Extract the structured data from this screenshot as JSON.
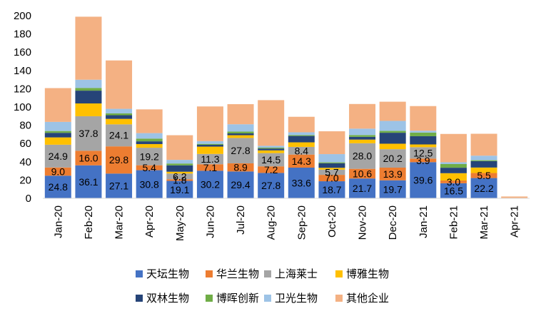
{
  "chart_data": {
    "type": "bar",
    "stacked": true,
    "categories": [
      "Jan-20",
      "Feb-20",
      "Mar-20",
      "Apr-20",
      "May-20",
      "Jun-20",
      "Jul-20",
      "Aug-20",
      "Sep-20",
      "Oct-20",
      "Nov-20",
      "Dec-20",
      "Jan-21",
      "Feb-21",
      "Mar-21",
      "Apr-21"
    ],
    "ylim": [
      0,
      200
    ],
    "yticks": [
      0,
      20,
      40,
      60,
      80,
      100,
      120,
      140,
      160,
      180,
      200
    ],
    "grid": false,
    "legend_position": "bottom",
    "series": [
      {
        "name": "天坛生物",
        "color": "#4472C4",
        "values": [
          24.8,
          36.1,
          27.1,
          30.8,
          19.1,
          30.2,
          29.4,
          27.8,
          33.6,
          18.7,
          21.7,
          19.7,
          39.6,
          16.5,
          22.2,
          0
        ],
        "labels": [
          "24.8",
          "36.1",
          "27.1",
          "30.8",
          "19.1",
          "30.2",
          "29.4",
          "27.8",
          "33.6",
          "18.7",
          "21.7",
          "19.7",
          "39.6",
          "16.5",
          "22.2",
          ""
        ]
      },
      {
        "name": "华兰生物",
        "color": "#ED7D31",
        "values": [
          9.0,
          16.0,
          29.8,
          5.4,
          1.8,
          7.1,
          8.9,
          7.2,
          14.3,
          7.0,
          10.6,
          13.9,
          3.9,
          3.0,
          5.5,
          0
        ],
        "labels": [
          "9.0",
          "16.0",
          "29.8",
          "5.4",
          "1.8",
          "7.1",
          "8.9",
          "7.2",
          "14.3",
          "7.0",
          "10.6",
          "13.9",
          "3.9",
          "3.0",
          "5.5",
          ""
        ]
      },
      {
        "name": "上海莱士",
        "color": "#A5A5A5",
        "values": [
          24.9,
          37.8,
          24.1,
          19.2,
          6.2,
          11.3,
          27.8,
          14.5,
          8.4,
          5.7,
          28.0,
          20.2,
          12.5,
          0,
          0,
          0
        ],
        "labels": [
          "24.9",
          "37.8",
          "24.1",
          "19.2",
          "6.2",
          "11.3",
          "27.8",
          "14.5",
          "8.4",
          "5.7",
          "28.0",
          "20.2",
          "12.5",
          "",
          "",
          " "
        ]
      },
      {
        "name": "博雅生物",
        "color": "#FFC000",
        "values": [
          8,
          14,
          6,
          4,
          2,
          8,
          3,
          3,
          5,
          2,
          4,
          6,
          3,
          8,
          6,
          0
        ]
      },
      {
        "name": "双林生物",
        "color": "#264478",
        "values": [
          5,
          14,
          4,
          3,
          7,
          2,
          2,
          2,
          7,
          5,
          3,
          12,
          9,
          6,
          7,
          0
        ]
      },
      {
        "name": "博晖创新",
        "color": "#70AD47",
        "values": [
          2,
          3,
          2,
          3,
          2,
          1,
          2,
          1,
          1,
          1,
          2,
          2,
          4,
          4,
          1,
          0
        ]
      },
      {
        "name": "卫光生物",
        "color": "#9DC3E6",
        "values": [
          10,
          9,
          5,
          6,
          4,
          3,
          8,
          2,
          3,
          9,
          7,
          11,
          2,
          2,
          5,
          0
        ]
      },
      {
        "name": "其他企业",
        "color": "#F4B183",
        "values": [
          37,
          69,
          53,
          26,
          27,
          38,
          22,
          50,
          17,
          25,
          27,
          21,
          27,
          31,
          24,
          2
        ]
      }
    ]
  }
}
